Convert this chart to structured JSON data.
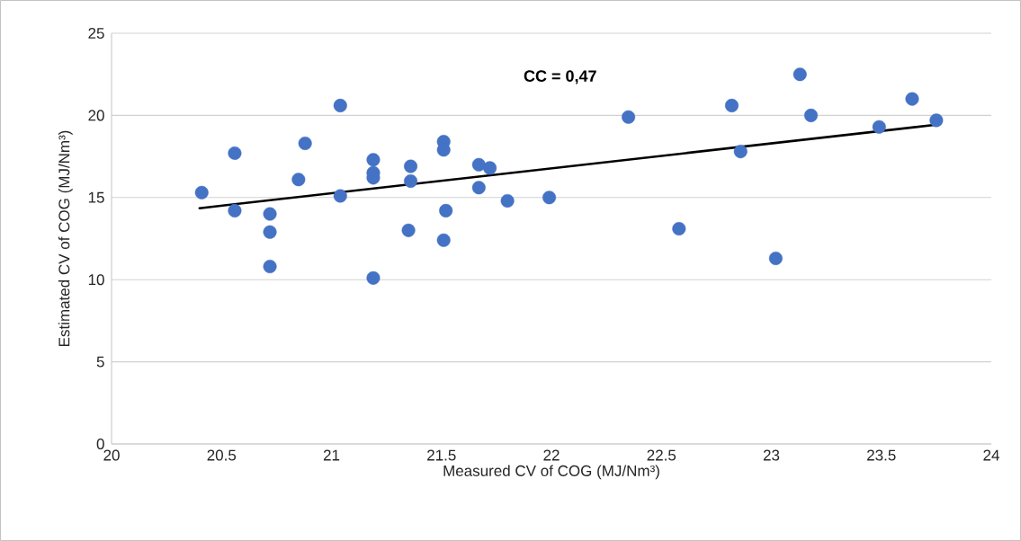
{
  "chart_data": {
    "type": "scatter",
    "xlabel": "Measured CV of COG (MJ/Nm³)",
    "ylabel": "Estimated CV of COG (MJ/Nm³)",
    "xlim": [
      20,
      24
    ],
    "xticks": [
      20,
      20.5,
      21,
      21.5,
      22,
      22.5,
      23,
      23.5,
      24
    ],
    "ylim": [
      0,
      25
    ],
    "yticks": [
      0,
      5,
      10,
      15,
      20,
      25
    ],
    "grid": "y",
    "annotations": [
      "CC = 0,47"
    ],
    "series": [
      {
        "type": "scatter",
        "marker": "circle",
        "color": "#4472c4",
        "x": [
          20.41,
          20.56,
          20.56,
          20.72,
          20.72,
          20.72,
          20.88,
          20.85,
          21.04,
          21.04,
          21.19,
          21.19,
          21.19,
          21.19,
          21.36,
          21.36,
          21.35,
          21.51,
          21.51,
          21.52,
          21.51,
          21.67,
          21.72,
          21.67,
          21.8,
          21.99,
          22.35,
          22.58,
          22.82,
          22.86,
          23.02,
          23.13,
          23.18,
          23.49,
          23.64,
          23.75
        ],
        "values": [
          15.3,
          17.7,
          14.2,
          14.0,
          12.9,
          10.8,
          18.3,
          16.1,
          20.6,
          15.1,
          17.3,
          16.5,
          16.2,
          10.1,
          16.9,
          16.0,
          13.0,
          18.4,
          17.9,
          14.2,
          12.4,
          17.0,
          16.8,
          15.6,
          14.8,
          15.0,
          19.9,
          13.1,
          20.6,
          17.8,
          11.3,
          22.5,
          20.0,
          19.3,
          21.0,
          19.7
        ]
      },
      {
        "type": "line",
        "color": "#000000",
        "line_style": "solid",
        "x": [
          20.4,
          23.75
        ],
        "values": [
          14.35,
          19.43
        ]
      }
    ]
  }
}
